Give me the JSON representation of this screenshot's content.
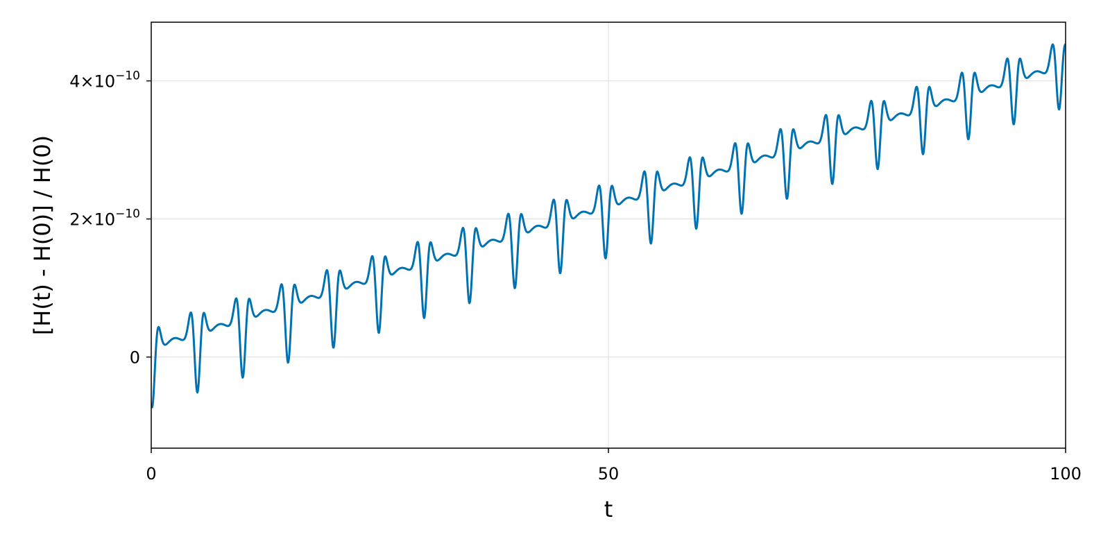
{
  "chart_data": {
    "type": "line",
    "title": "",
    "xlabel": "t",
    "ylabel": "[H(t) - H(0)] / H(0)",
    "xlim": [
      0,
      100
    ],
    "ylim": [
      -1.32e-10,
      4.85e-10
    ],
    "grid": true,
    "x_ticks": [
      {
        "value": 0,
        "label": "0"
      },
      {
        "value": 50,
        "label": "50"
      },
      {
        "value": 100,
        "label": "100"
      }
    ],
    "y_ticks": [
      {
        "value": 0,
        "label": "0",
        "mantissa": "",
        "exponent": ""
      },
      {
        "value": 2e-10,
        "label": "2×10⁻¹⁰",
        "mantissa": "2×10",
        "exponent": "−10"
      },
      {
        "value": 4e-10,
        "label": "4×10⁻¹⁰",
        "mantissa": "4×10",
        "exponent": "−10"
      }
    ],
    "series": [
      {
        "color": "#0072b2",
        "model": {
          "period": 4.96,
          "slope": 4.1e-12,
          "offset": 4e-12,
          "dip_phase": 0.1,
          "dip_depth_start": 1.15e-10,
          "dip_depth_end": 9e-11,
          "dip_width": 0.32,
          "left_peak_phase": -0.48,
          "right_peak_phase": 0.58,
          "peak_height": 5.5e-11,
          "peak_width": 0.36,
          "bump_phase": 2.48,
          "bump_height": 1.3e-11,
          "bump_width": 0.75,
          "t_start": 0,
          "t_end": 100,
          "samples": 2000
        }
      }
    ]
  }
}
